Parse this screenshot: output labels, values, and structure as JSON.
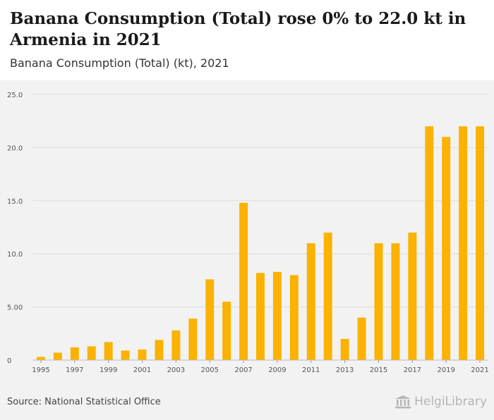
{
  "title": "Banana Consumption (Total) rose 0% to 22.0 kt in Armenia in 2021",
  "subtitle": "Banana Consumption (Total) (kt), 2021",
  "source": "Source: National Statistical Office",
  "logo_text": "HelgiLibrary",
  "colors": {
    "bar": "#FBB203",
    "grid": "#dcdcdc",
    "axis_text": "#555555",
    "background": "#f2f2f2"
  },
  "chart_data": {
    "type": "bar",
    "title": "Banana Consumption (Total) (kt), 2021",
    "xlabel": "",
    "ylabel": "",
    "ylim": [
      0,
      25
    ],
    "yticks": [
      0,
      5,
      10,
      15,
      20,
      25
    ],
    "ytick_labels": [
      "0",
      "5.00",
      "10.0",
      "15.0",
      "20.0",
      "25.0"
    ],
    "grid": true,
    "categories": [
      "1995",
      "1996",
      "1997",
      "1998",
      "1999",
      "2000",
      "2001",
      "2002",
      "2003",
      "2004",
      "2005",
      "2006",
      "2007",
      "2008",
      "2009",
      "2010",
      "2011",
      "2012",
      "2013",
      "2014",
      "2015",
      "2016",
      "2017",
      "2018",
      "2019",
      "2020",
      "2021"
    ],
    "xtick_labels": [
      "1995",
      "1997",
      "1999",
      "2001",
      "2003",
      "2005",
      "2007",
      "2009",
      "2011",
      "2013",
      "2015",
      "2017",
      "2019",
      "2021"
    ],
    "values": [
      0.3,
      0.7,
      1.2,
      1.3,
      1.7,
      0.9,
      1.0,
      1.9,
      2.8,
      3.9,
      7.6,
      5.5,
      14.8,
      8.2,
      8.3,
      8.0,
      11.0,
      12.0,
      2.0,
      4.0,
      11.0,
      11.0,
      12.0,
      22.0,
      21.0,
      22.0,
      22.0
    ]
  }
}
